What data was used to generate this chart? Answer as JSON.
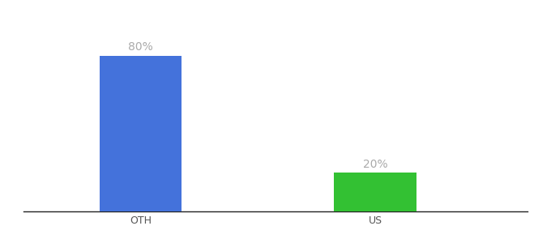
{
  "categories": [
    "OTH",
    "US"
  ],
  "values": [
    80,
    20
  ],
  "bar_colors": [
    "#4472db",
    "#33c133"
  ],
  "xlabel": "",
  "ylabel": "",
  "ylim": [
    0,
    100
  ],
  "label_format": "{}%",
  "background_color": "#ffffff",
  "label_color": "#aaaaaa",
  "label_fontsize": 10,
  "tick_fontsize": 9,
  "bar_width": 0.35,
  "x_positions": [
    1,
    2
  ]
}
